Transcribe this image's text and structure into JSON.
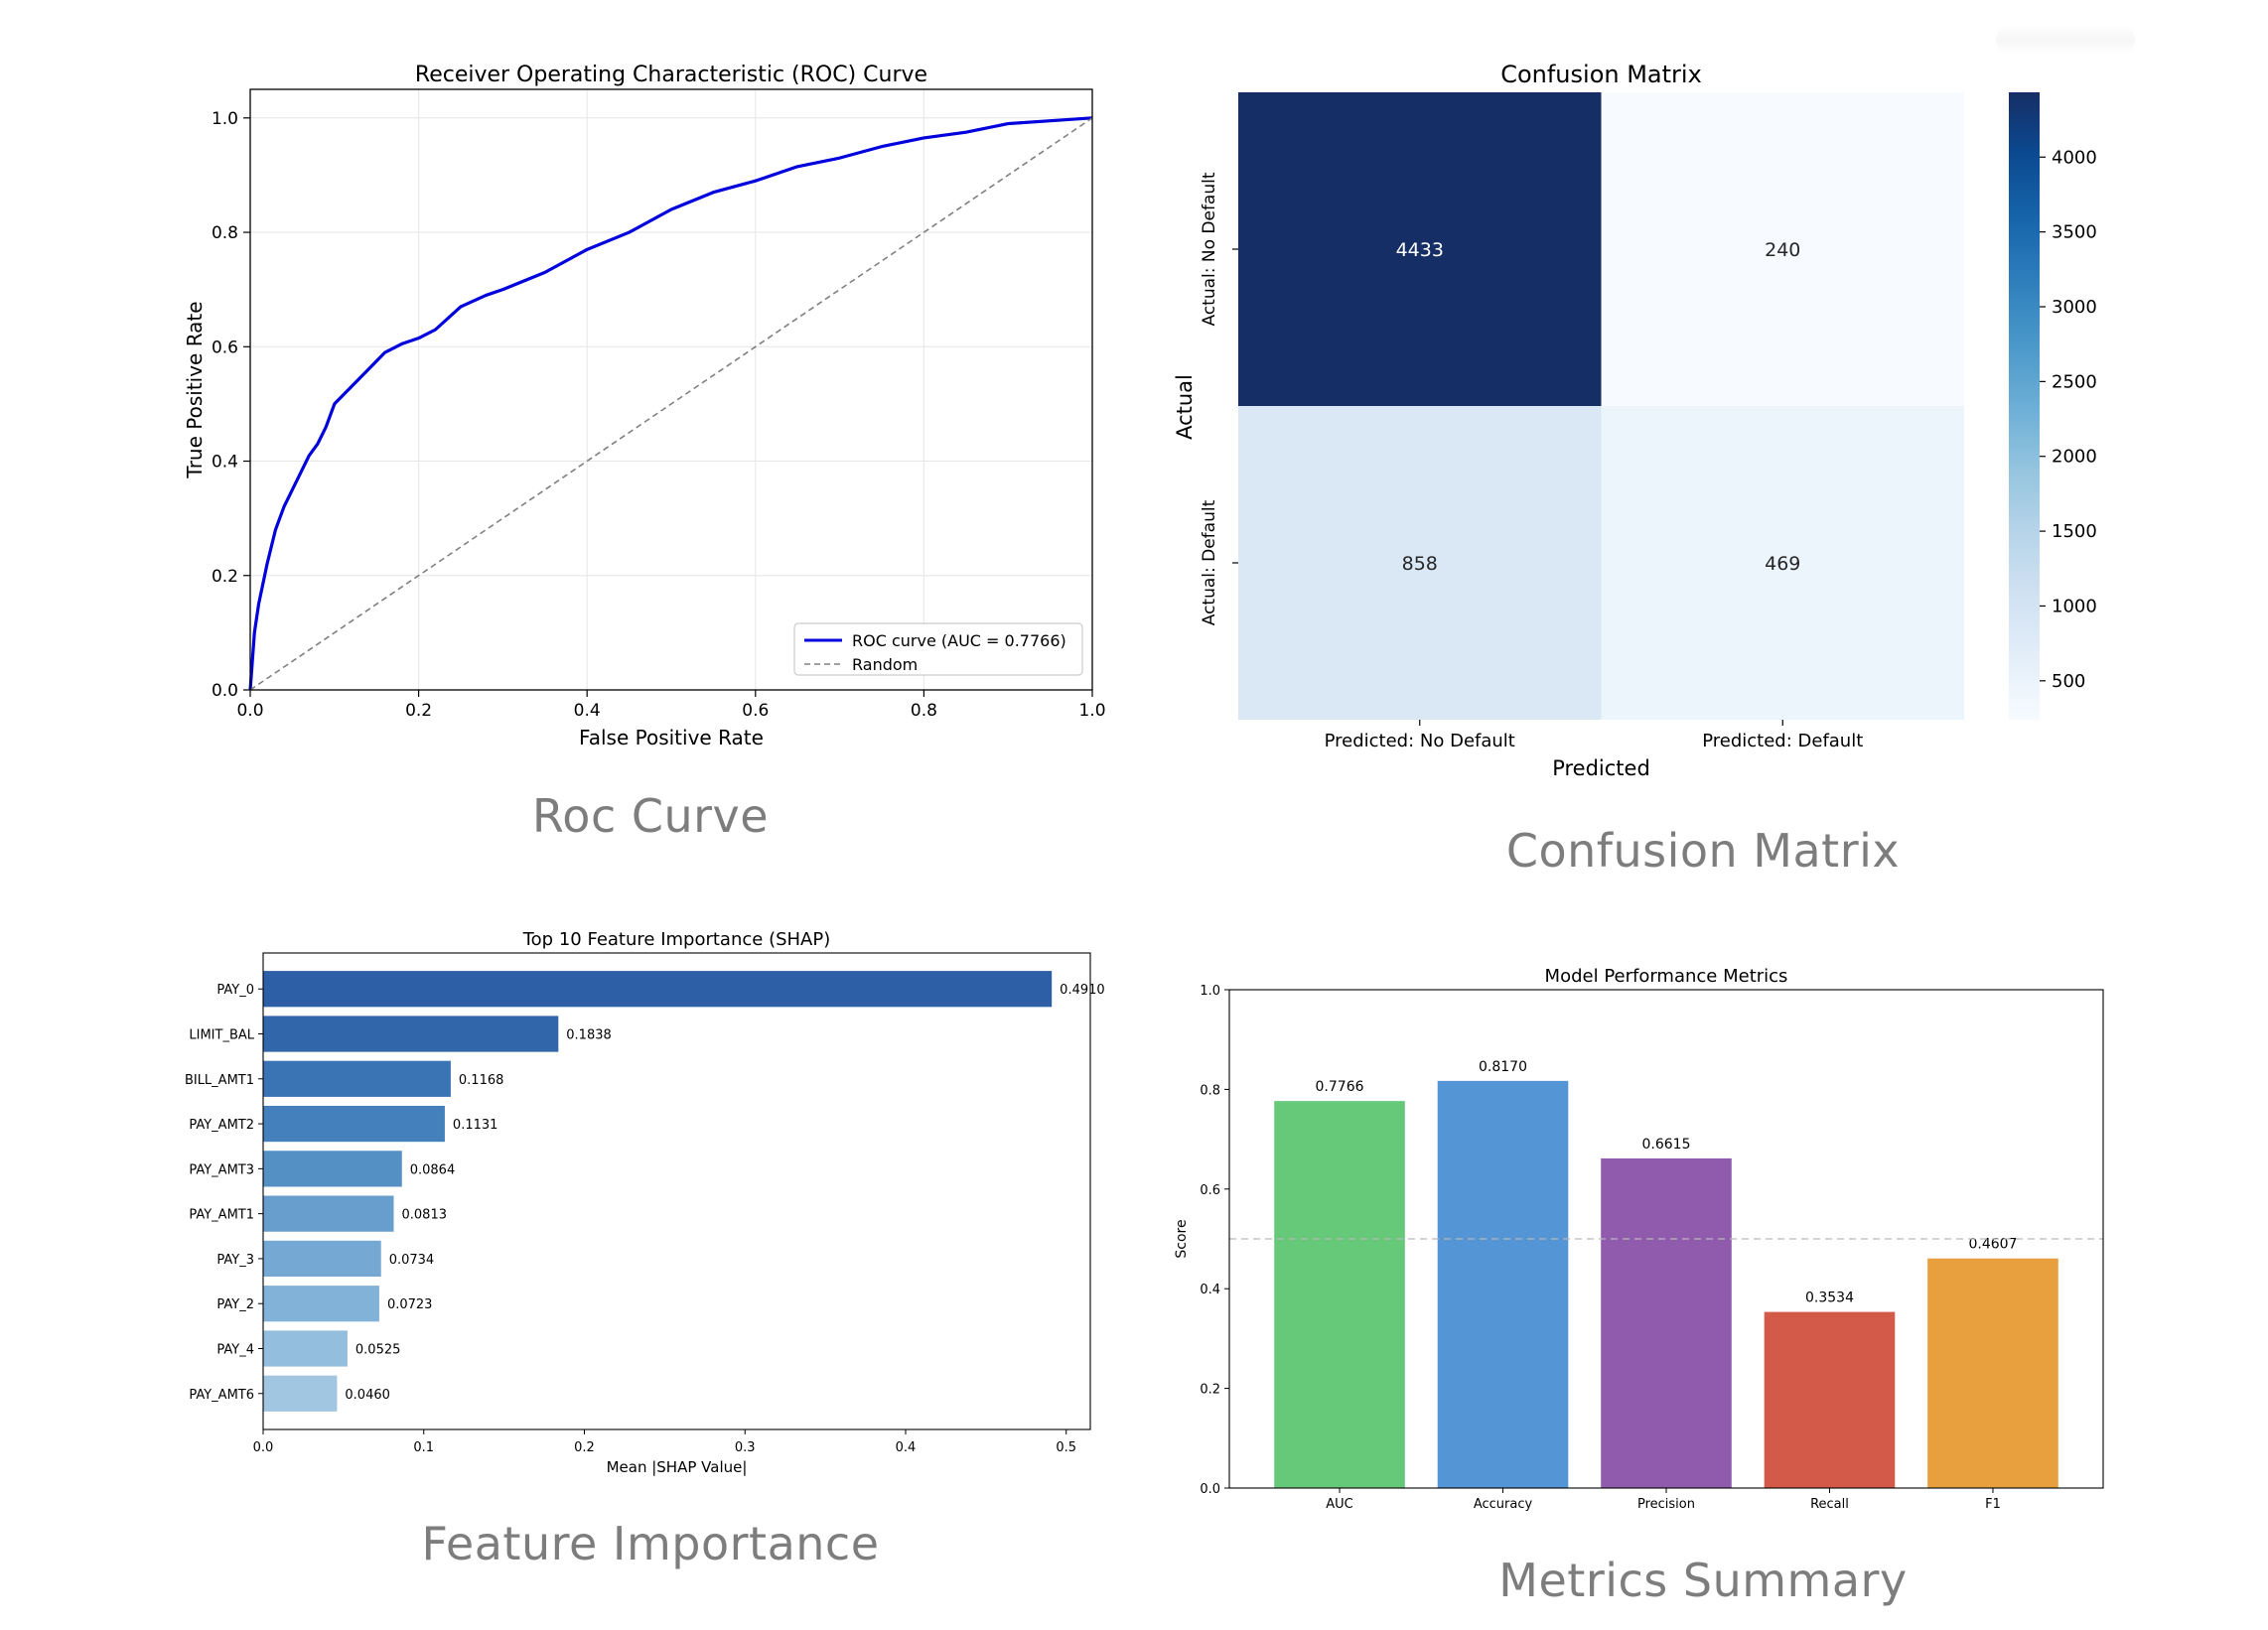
{
  "captions": {
    "roc": "Roc Curve",
    "confusion": "Confusion Matrix",
    "feature": "Feature Importance",
    "metrics": "Metrics Summary"
  },
  "chart_data": [
    {
      "id": "roc",
      "type": "line",
      "title": "Receiver Operating Characteristic (ROC) Curve",
      "xlabel": "False Positive Rate",
      "ylabel": "True Positive Rate",
      "xlim": [
        0,
        1
      ],
      "ylim": [
        0,
        1.05
      ],
      "xticks": [
        "0.0",
        "0.2",
        "0.4",
        "0.6",
        "0.8",
        "1.0"
      ],
      "yticks": [
        "0.0",
        "0.2",
        "0.4",
        "0.6",
        "0.8",
        "1.0"
      ],
      "grid": true,
      "legend_position": "bottom-right",
      "series": [
        {
          "name": "ROC curve (AUC = 0.7766)",
          "color": "#0000dd",
          "style": "solid",
          "x": [
            0.0,
            0.005,
            0.01,
            0.02,
            0.03,
            0.04,
            0.05,
            0.06,
            0.07,
            0.08,
            0.09,
            0.1,
            0.12,
            0.14,
            0.16,
            0.18,
            0.2,
            0.22,
            0.25,
            0.28,
            0.3,
            0.35,
            0.4,
            0.45,
            0.5,
            0.55,
            0.6,
            0.65,
            0.7,
            0.75,
            0.8,
            0.85,
            0.9,
            0.95,
            1.0
          ],
          "y": [
            0.0,
            0.1,
            0.15,
            0.22,
            0.28,
            0.32,
            0.35,
            0.38,
            0.41,
            0.43,
            0.46,
            0.5,
            0.53,
            0.56,
            0.59,
            0.605,
            0.615,
            0.63,
            0.67,
            0.69,
            0.7,
            0.73,
            0.77,
            0.8,
            0.84,
            0.87,
            0.89,
            0.915,
            0.93,
            0.95,
            0.965,
            0.975,
            0.99,
            0.995,
            1.0
          ]
        },
        {
          "name": "Random",
          "color": "#808080",
          "style": "dashed",
          "x": [
            0,
            1
          ],
          "y": [
            0,
            1
          ]
        }
      ]
    },
    {
      "id": "confusion",
      "type": "heatmap",
      "title": "Confusion Matrix",
      "xlabel": "Predicted",
      "ylabel": "Actual",
      "x_categories": [
        "Predicted: No Default",
        "Predicted: Default"
      ],
      "y_categories": [
        "Actual: No Default",
        "Actual: Default"
      ],
      "values": [
        [
          4433,
          240
        ],
        [
          858,
          469
        ]
      ],
      "colorbar_ticks": [
        4000,
        3500,
        3000,
        2500,
        2000,
        1500,
        1000,
        500
      ],
      "colorbar_range": [
        240,
        4433
      ],
      "colormap": "Blues"
    },
    {
      "id": "feature",
      "type": "bar",
      "orientation": "horizontal",
      "title": "Top 10 Feature Importance (SHAP)",
      "xlabel": "Mean |SHAP Value|",
      "xlim": [
        0,
        0.515
      ],
      "xticks": [
        "0.0",
        "0.1",
        "0.2",
        "0.3",
        "0.4",
        "0.5"
      ],
      "categories": [
        "PAY_0",
        "LIMIT_BAL",
        "BILL_AMT1",
        "PAY_AMT2",
        "PAY_AMT3",
        "PAY_AMT1",
        "PAY_3",
        "PAY_2",
        "PAY_4",
        "PAY_AMT6"
      ],
      "values": [
        0.491,
        0.1838,
        0.1168,
        0.1131,
        0.0864,
        0.0813,
        0.0734,
        0.0723,
        0.0525,
        0.046
      ],
      "value_labels": [
        "0.4910",
        "0.1838",
        "0.1168",
        "0.1131",
        "0.0864",
        "0.0813",
        "0.0734",
        "0.0723",
        "0.0525",
        "0.0460"
      ],
      "colors": [
        "#2c5fa5",
        "#3266ab",
        "#3a74b5",
        "#4481bc",
        "#5590c5",
        "#679ecd",
        "#75a8d2",
        "#83b2d8",
        "#93bedd",
        "#a0c6e1"
      ]
    },
    {
      "id": "metrics",
      "type": "bar",
      "title": "Model Performance Metrics",
      "ylabel": "Score",
      "ylim": [
        0,
        1.0
      ],
      "yticks": [
        "0.0",
        "0.2",
        "0.4",
        "0.6",
        "0.8",
        "1.0"
      ],
      "reference_line": 0.5,
      "categories": [
        "AUC",
        "Accuracy",
        "Precision",
        "Recall",
        "F1"
      ],
      "values": [
        0.7766,
        0.817,
        0.6615,
        0.3534,
        0.4607
      ],
      "value_labels": [
        "0.7766",
        "0.8170",
        "0.6615",
        "0.3534",
        "0.4607"
      ],
      "colors": [
        "#66c97a",
        "#5395d5",
        "#915bad",
        "#d35a48",
        "#e8a03e"
      ]
    }
  ]
}
